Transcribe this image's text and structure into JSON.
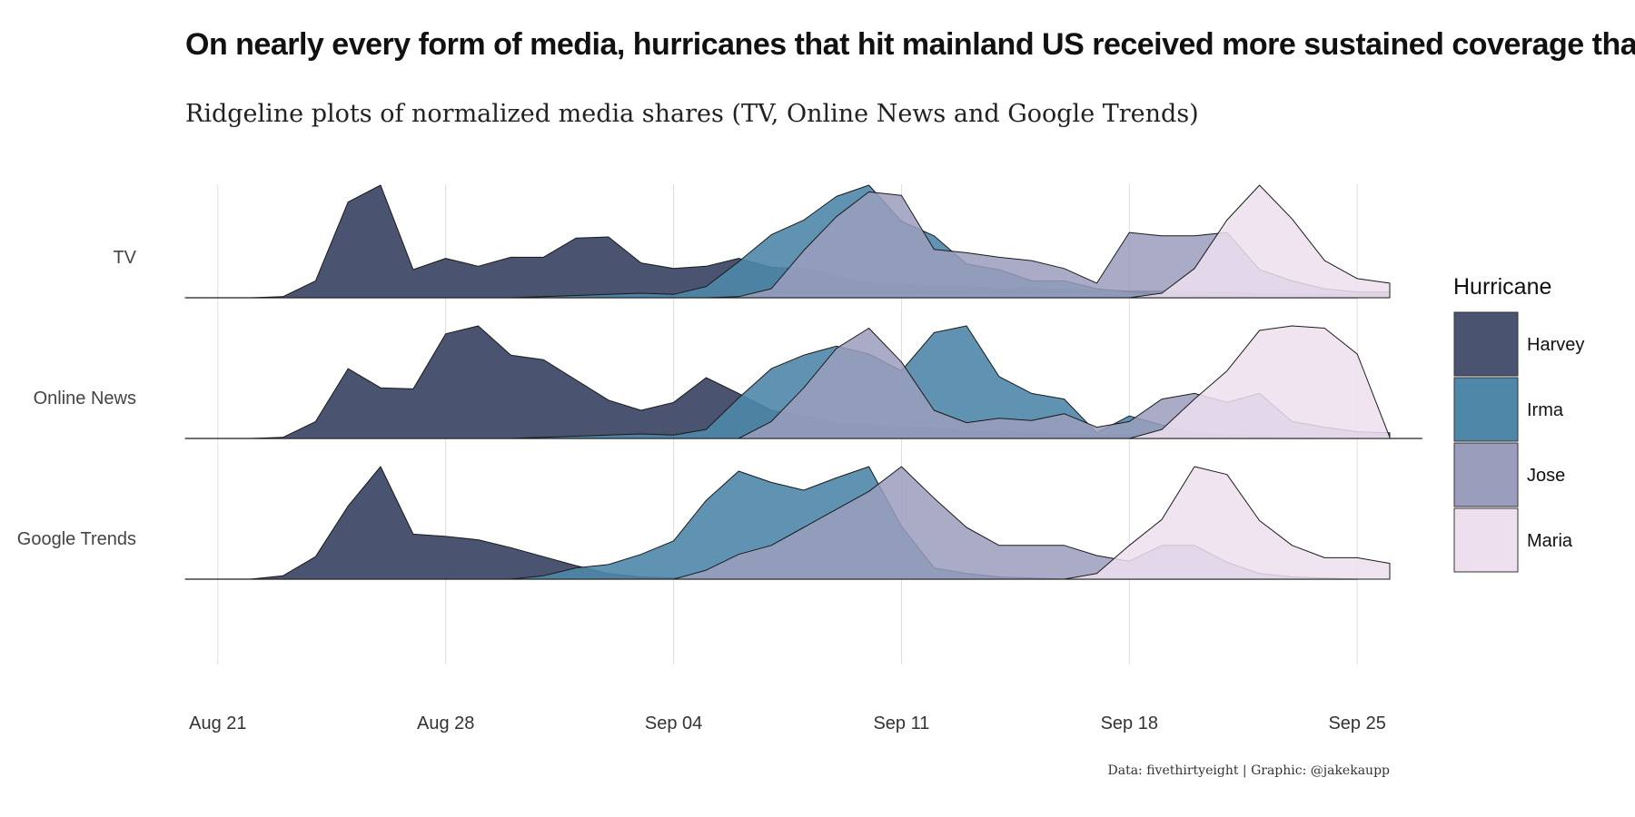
{
  "title": "On nearly every form of media, hurricanes that hit mainland US received more sustained coverage than Maria in Puerto Rico",
  "subtitle": "Ridgeline plots of normalized media shares (TV, Online News and Google Trends)",
  "caption": "Data: fivethirtyeight | Graphic: @jakekaupp",
  "chart_data": {
    "type": "area",
    "subtype": "ridgeline",
    "title": "On nearly every form of media, hurricanes that hit mainland US received more sustained coverage than Maria in Puerto Rico",
    "subtitle": "Ridgeline plots of normalized media shares (TV, Online News and Google Trends)",
    "xlabel": "",
    "ylabel": "",
    "x_ticks": [
      "Aug 21",
      "Aug 28",
      "Sep 04",
      "Sep 11",
      "Sep 18",
      "Sep 25"
    ],
    "x_range": [
      "2017-08-20",
      "2017-09-26"
    ],
    "rows": [
      "TV",
      "Online News",
      "Google Trends"
    ],
    "grid": "vertical",
    "legend": {
      "title": "Hurricane",
      "placement": "right",
      "entries": [
        {
          "name": "Harvey",
          "color": "#4a5370"
        },
        {
          "name": "Irma",
          "color": "#4e87a8"
        },
        {
          "name": "Jose",
          "color": "#9b9dbd"
        },
        {
          "name": "Maria",
          "color": "#eddfee"
        }
      ]
    },
    "series": [
      {
        "name": "TV",
        "start": "2017-08-20",
        "values": {
          "Harvey": [
            0,
            0,
            0,
            0.01,
            0.15,
            0.85,
            1.0,
            0.25,
            0.35,
            0.28,
            0.36,
            0.36,
            0.53,
            0.54,
            0.31,
            0.26,
            0.28,
            0.35,
            0.27,
            0.26,
            0.2,
            0.13,
            0.12,
            0.11,
            0.1,
            0.08,
            0.09,
            0.07,
            0.07,
            0.06,
            0.06,
            0.05,
            0.05,
            0.04,
            0.04,
            0.03,
            0.03,
            0.03
          ],
          "Irma": [
            0,
            0,
            0,
            0,
            0,
            0,
            0,
            0,
            0,
            0,
            0,
            0.01,
            0.02,
            0.03,
            0.04,
            0.03,
            0.1,
            0.32,
            0.56,
            0.69,
            0.9,
            1.0,
            0.68,
            0.55,
            0.3,
            0.25,
            0.15,
            0.15,
            0.08,
            0.05,
            0.03,
            0.02,
            0.01,
            0,
            0,
            0,
            0,
            0
          ],
          "Jose": [
            0,
            0,
            0,
            0,
            0,
            0,
            0,
            0,
            0,
            0,
            0,
            0,
            0,
            0,
            0,
            0,
            0,
            0.01,
            0.08,
            0.42,
            0.72,
            0.94,
            0.91,
            0.43,
            0.4,
            0.36,
            0.33,
            0.26,
            0.13,
            0.58,
            0.55,
            0.55,
            0.58,
            0.25,
            0.15,
            0.08,
            0.05,
            0.05
          ],
          "Maria": [
            0,
            0,
            0,
            0,
            0,
            0,
            0,
            0,
            0,
            0,
            0,
            0,
            0,
            0,
            0,
            0,
            0,
            0,
            0,
            0,
            0,
            0,
            0,
            0,
            0,
            0,
            0,
            0,
            0,
            0,
            0.04,
            0.26,
            0.69,
            1.0,
            0.7,
            0.33,
            0.17,
            0.13
          ]
        }
      },
      {
        "name": "Online News",
        "start": "2017-08-20",
        "values": {
          "Harvey": [
            0,
            0,
            0,
            0.01,
            0.15,
            0.62,
            0.45,
            0.44,
            0.93,
            1.0,
            0.74,
            0.7,
            0.52,
            0.34,
            0.25,
            0.32,
            0.54,
            0.4,
            0.25,
            0.2,
            0.14,
            0.12,
            0.1,
            0.09,
            0.07,
            0.06,
            0.05,
            0.04,
            0.03,
            0.03,
            0.02,
            0.02,
            0.01,
            0.01,
            0,
            0,
            0,
            0
          ],
          "Irma": [
            0,
            0,
            0,
            0,
            0,
            0,
            0,
            0,
            0,
            0,
            0,
            0.01,
            0.02,
            0.03,
            0.04,
            0.03,
            0.08,
            0.36,
            0.62,
            0.74,
            0.82,
            0.75,
            0.6,
            0.94,
            1.0,
            0.55,
            0.4,
            0.35,
            0.05,
            0.2,
            0.12,
            0.05,
            0.03,
            0.02,
            0.01,
            0,
            0,
            0
          ],
          "Jose": [
            0,
            0,
            0,
            0,
            0,
            0,
            0,
            0,
            0,
            0,
            0,
            0,
            0,
            0,
            0,
            0,
            0,
            0,
            0.15,
            0.45,
            0.8,
            0.98,
            0.68,
            0.25,
            0.14,
            0.18,
            0.16,
            0.22,
            0.1,
            0.15,
            0.35,
            0.4,
            0.32,
            0.4,
            0.15,
            0.1,
            0.06,
            0.05
          ],
          "Maria": [
            0,
            0,
            0,
            0,
            0,
            0,
            0,
            0,
            0,
            0,
            0,
            0,
            0,
            0,
            0,
            0,
            0,
            0,
            0,
            0,
            0,
            0,
            0,
            0,
            0,
            0,
            0,
            0,
            0,
            0,
            0.08,
            0.35,
            0.6,
            0.96,
            1.0,
            0.98,
            0.75,
            0.01
          ]
        }
      },
      {
        "name": "Google Trends",
        "start": "2017-08-20",
        "values": {
          "Harvey": [
            0,
            0,
            0,
            0.03,
            0.2,
            0.65,
            1.0,
            0.4,
            0.38,
            0.35,
            0.28,
            0.2,
            0.12,
            0.05,
            0.02,
            0.01,
            0,
            0,
            0,
            0,
            0,
            0,
            0,
            0,
            0,
            0,
            0,
            0,
            0,
            0,
            0,
            0,
            0,
            0,
            0,
            0,
            0,
            0
          ],
          "Irma": [
            0,
            0,
            0,
            0,
            0,
            0,
            0,
            0,
            0,
            0,
            0,
            0.03,
            0.1,
            0.13,
            0.22,
            0.34,
            0.7,
            0.96,
            0.86,
            0.79,
            0.9,
            1.0,
            0.47,
            0.1,
            0.05,
            0.02,
            0.01,
            0,
            0,
            0,
            0,
            0,
            0,
            0,
            0,
            0,
            0,
            0
          ],
          "Jose": [
            0,
            0,
            0,
            0,
            0,
            0,
            0,
            0,
            0,
            0,
            0,
            0,
            0,
            0,
            0,
            0,
            0.08,
            0.22,
            0.3,
            0.46,
            0.62,
            0.78,
            1.0,
            0.72,
            0.46,
            0.3,
            0.3,
            0.3,
            0.21,
            0.16,
            0.3,
            0.3,
            0.15,
            0.05,
            0.02,
            0.01,
            0,
            0
          ],
          "Maria": [
            0,
            0,
            0,
            0,
            0,
            0,
            0,
            0,
            0,
            0,
            0,
            0,
            0,
            0,
            0,
            0,
            0,
            0,
            0,
            0,
            0,
            0,
            0,
            0,
            0,
            0,
            0,
            0,
            0.05,
            0.3,
            0.53,
            1.0,
            0.93,
            0.52,
            0.3,
            0.19,
            0.19,
            0.14
          ]
        }
      }
    ]
  }
}
